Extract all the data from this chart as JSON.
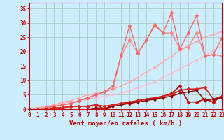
{
  "title": "",
  "xlabel": "Vent moyen/en rafales ( km/h )",
  "ylabel": "",
  "bg_color": "#cceeff",
  "grid_color": "#aacccc",
  "xlim": [
    0,
    23
  ],
  "ylim": [
    0,
    37
  ],
  "yticks": [
    0,
    5,
    10,
    15,
    20,
    25,
    30,
    35
  ],
  "xticks": [
    0,
    1,
    2,
    3,
    4,
    5,
    6,
    7,
    8,
    9,
    10,
    11,
    12,
    13,
    14,
    15,
    16,
    17,
    18,
    19,
    20,
    21,
    22,
    23
  ],
  "lines": [
    {
      "x": [
        0,
        1,
        2,
        3,
        4,
        5,
        6,
        7,
        8,
        9,
        10,
        11,
        12,
        13,
        14,
        15,
        16,
        17,
        18,
        19,
        20,
        21,
        22,
        23
      ],
      "y": [
        0,
        0.5,
        1,
        1.5,
        2,
        2.5,
        3,
        3.5,
        4,
        4.5,
        5,
        5.5,
        6.5,
        7.5,
        8.5,
        9.5,
        11,
        12.5,
        14,
        15.5,
        17,
        18.5,
        20.5,
        22
      ],
      "color": "#ffbbcc",
      "lw": 1.0,
      "marker": "D",
      "ms": 1.5,
      "markevery": 1
    },
    {
      "x": [
        0,
        1,
        2,
        3,
        4,
        5,
        6,
        7,
        8,
        9,
        10,
        11,
        12,
        13,
        14,
        15,
        16,
        17,
        18,
        19,
        20,
        21,
        22,
        23
      ],
      "y": [
        0,
        0.5,
        1,
        1.5,
        2.5,
        3,
        4,
        5,
        5.5,
        6,
        7,
        8,
        9.5,
        11,
        13,
        14.5,
        16.5,
        18.5,
        20.5,
        22,
        23.5,
        25,
        26,
        27
      ],
      "color": "#ffaaaa",
      "lw": 1.0,
      "marker": "D",
      "ms": 1.5,
      "markevery": 1
    },
    {
      "x": [
        0,
        1,
        2,
        3,
        4,
        5,
        6,
        7,
        8,
        9,
        10,
        11,
        12,
        13,
        14,
        15,
        16,
        17,
        18,
        19,
        20,
        21,
        22,
        23
      ],
      "y": [
        0,
        0,
        0.5,
        1,
        1.5,
        2,
        3,
        4,
        5,
        6,
        7,
        18.5,
        24,
        19.5,
        24,
        29,
        26.5,
        26.5,
        21,
        21.5,
        26.5,
        18.5,
        19,
        18.5
      ],
      "color": "#ff8888",
      "lw": 1.0,
      "marker": "D",
      "ms": 2.0,
      "markevery": 1
    },
    {
      "x": [
        0,
        1,
        2,
        3,
        4,
        5,
        6,
        7,
        8,
        9,
        10,
        11,
        12,
        13,
        14,
        15,
        16,
        17,
        18,
        19,
        20,
        21,
        22,
        23
      ],
      "y": [
        0,
        0,
        0.5,
        1,
        1.5,
        2,
        3,
        4,
        5,
        6,
        8,
        19,
        29,
        19.5,
        24,
        29.5,
        26.5,
        33.5,
        21,
        26.5,
        32.5,
        18.5,
        19,
        24.5
      ],
      "color": "#ff6666",
      "lw": 1.0,
      "marker": "D",
      "ms": 2.0,
      "markevery": 1
    },
    {
      "x": [
        0,
        1,
        2,
        3,
        4,
        5,
        6,
        7,
        8,
        9,
        10,
        11,
        12,
        13,
        14,
        15,
        16,
        17,
        18,
        19,
        20,
        21,
        22,
        23
      ],
      "y": [
        0,
        0,
        0,
        0,
        0.5,
        1,
        1,
        1,
        1.5,
        0,
        1.5,
        2,
        2.5,
        3,
        3.5,
        4,
        4.5,
        5.5,
        8,
        2.5,
        2.5,
        3.5,
        2.5,
        4.5
      ],
      "color": "#cc0000",
      "lw": 1.2,
      "marker": "D",
      "ms": 2.0,
      "markevery": 1
    },
    {
      "x": [
        0,
        1,
        2,
        3,
        4,
        5,
        6,
        7,
        8,
        9,
        10,
        11,
        12,
        13,
        14,
        15,
        16,
        17,
        18,
        19,
        20,
        21,
        22,
        23
      ],
      "y": [
        0,
        0,
        0,
        0.5,
        0.5,
        1,
        1,
        1,
        1.5,
        1,
        1.5,
        2,
        2,
        3,
        3.5,
        3.5,
        4.5,
        5,
        6.5,
        7,
        7,
        7.5,
        3.5,
        4.5
      ],
      "color": "#dd2222",
      "lw": 1.2,
      "marker": "D",
      "ms": 2.0,
      "markevery": 1
    },
    {
      "x": [
        0,
        1,
        2,
        3,
        4,
        5,
        6,
        7,
        8,
        9,
        10,
        11,
        12,
        13,
        14,
        15,
        16,
        17,
        18,
        19,
        20,
        21,
        22,
        23
      ],
      "y": [
        0,
        0,
        0,
        0,
        0,
        0,
        0,
        0,
        0.5,
        0,
        1,
        1.5,
        2,
        2.5,
        3,
        3.5,
        4,
        4.5,
        5.5,
        6,
        6.5,
        3,
        3.5,
        4
      ],
      "color": "#880000",
      "lw": 1.0,
      "marker": "D",
      "ms": 1.5,
      "markevery": 1
    }
  ],
  "axis_color": "#cc0000",
  "tick_color": "#cc0000",
  "label_color": "#cc0000",
  "tick_fontsize": 5.5,
  "label_fontsize": 6.5
}
